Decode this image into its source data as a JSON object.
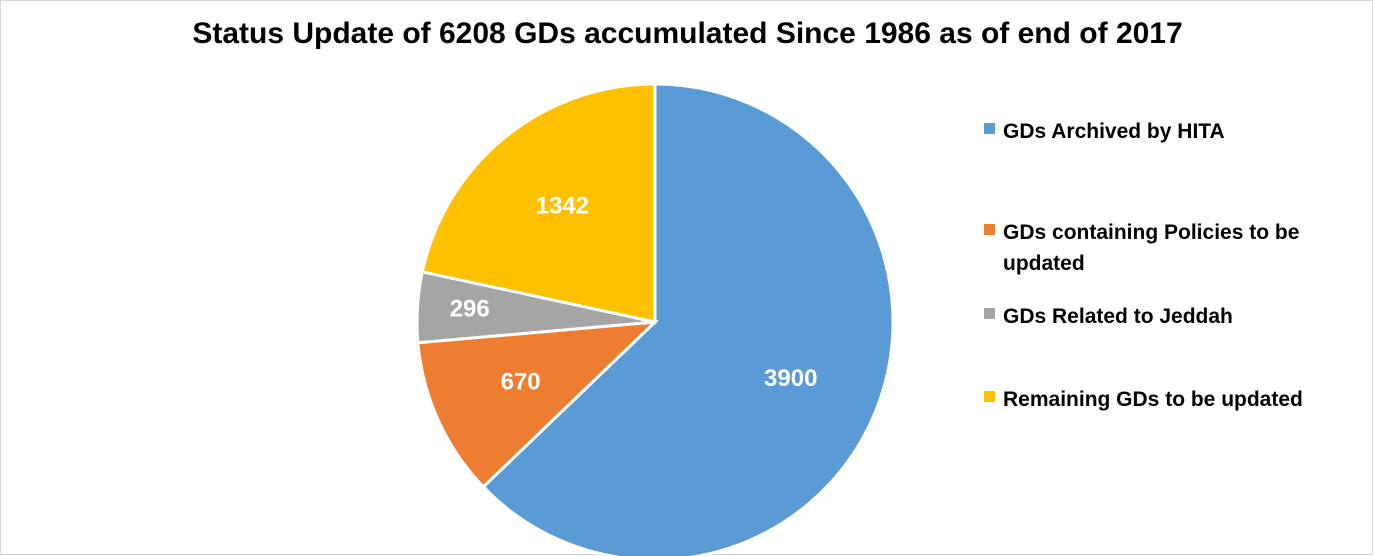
{
  "chart_data": {
    "type": "pie",
    "title": "Status Update of 6208 GDs accumulated Since 1986 as of end of 2017",
    "legend_position": "right",
    "series": [
      {
        "name": "GDs Archived by HITA",
        "value": 3900,
        "label": "3900",
        "color": "#5B9BD5"
      },
      {
        "name": "GDs containing Policies to be updated",
        "value": 670,
        "label": "670",
        "color": "#ED7D31"
      },
      {
        "name": "GDs Related to Jeddah",
        "value": 296,
        "label": "296",
        "color": "#A5A5A5"
      },
      {
        "name": "Remaining GDs to be updated",
        "value": 1342,
        "label": "1342",
        "color": "#FFC000"
      }
    ]
  }
}
